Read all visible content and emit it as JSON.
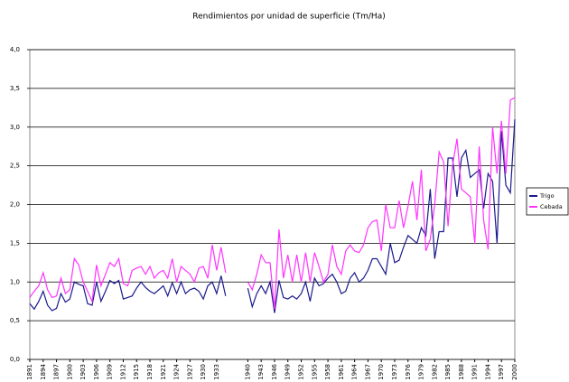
{
  "chart_data": {
    "type": "line",
    "title": "Rendimientos por unidad de superficie (Tm/Ha)",
    "x": [
      1891,
      1892,
      1893,
      1894,
      1895,
      1896,
      1897,
      1898,
      1899,
      1900,
      1901,
      1902,
      1903,
      1904,
      1905,
      1906,
      1907,
      1908,
      1909,
      1910,
      1911,
      1912,
      1913,
      1914,
      1915,
      1916,
      1917,
      1918,
      1919,
      1920,
      1921,
      1922,
      1923,
      1924,
      1925,
      1926,
      1927,
      1928,
      1929,
      1930,
      1931,
      1932,
      1933,
      1934,
      1935,
      1936,
      1937,
      1938,
      1939,
      1940,
      1941,
      1942,
      1943,
      1944,
      1945,
      1946,
      1947,
      1948,
      1949,
      1950,
      1951,
      1952,
      1953,
      1954,
      1955,
      1956,
      1957,
      1958,
      1959,
      1960,
      1961,
      1962,
      1963,
      1964,
      1965,
      1966,
      1967,
      1968,
      1969,
      1970,
      1971,
      1972,
      1973,
      1974,
      1975,
      1976,
      1977,
      1978,
      1979,
      1980,
      1981,
      1982,
      1983,
      1984,
      1985,
      1986,
      1987,
      1988,
      1989,
      1990,
      1991,
      1992,
      1993,
      1994,
      1995,
      1996,
      1997,
      1998,
      1999,
      2000
    ],
    "series": [
      {
        "name": "Trigo",
        "color": "#1a1a8c",
        "values": [
          0.72,
          0.65,
          0.75,
          0.88,
          0.7,
          0.63,
          0.66,
          0.85,
          0.74,
          0.78,
          1.0,
          0.97,
          0.95,
          0.72,
          0.7,
          1.0,
          0.75,
          0.88,
          1.02,
          0.98,
          1.02,
          0.78,
          0.8,
          0.82,
          0.92,
          1.0,
          0.93,
          0.88,
          0.85,
          0.9,
          0.95,
          0.82,
          0.99,
          0.85,
          1.0,
          0.85,
          0.9,
          0.92,
          0.88,
          0.78,
          0.95,
          1.0,
          0.85,
          1.08,
          0.82,
          null,
          null,
          null,
          null,
          0.92,
          0.68,
          0.85,
          0.95,
          0.85,
          1.0,
          0.6,
          1.02,
          0.8,
          0.78,
          0.82,
          0.78,
          0.85,
          1.0,
          0.75,
          1.05,
          0.95,
          0.98,
          1.05,
          1.1,
          1.0,
          0.85,
          0.88,
          1.05,
          1.12,
          1.0,
          1.05,
          1.15,
          1.3,
          1.3,
          1.2,
          1.1,
          1.5,
          1.25,
          1.28,
          1.45,
          1.6,
          1.55,
          1.5,
          1.7,
          1.6,
          2.2,
          1.3,
          1.65,
          1.65,
          2.6,
          2.6,
          2.1,
          2.6,
          2.7,
          2.35,
          2.4,
          2.45,
          1.95,
          2.4,
          2.3,
          1.5,
          2.95,
          2.25,
          2.15,
          3.1
        ]
      },
      {
        "name": "Cebada",
        "color": "#ff33ff",
        "values": [
          0.8,
          0.88,
          0.95,
          1.12,
          0.9,
          0.8,
          0.82,
          1.05,
          0.85,
          0.9,
          1.3,
          1.22,
          1.0,
          0.88,
          0.75,
          1.22,
          0.95,
          1.1,
          1.25,
          1.2,
          1.3,
          0.98,
          0.95,
          1.15,
          1.18,
          1.2,
          1.1,
          1.2,
          1.05,
          1.12,
          1.15,
          1.05,
          1.3,
          1.0,
          1.2,
          1.15,
          1.1,
          1.0,
          1.18,
          1.2,
          1.05,
          1.48,
          1.15,
          1.45,
          1.12,
          null,
          null,
          null,
          null,
          1.0,
          0.9,
          1.1,
          1.35,
          1.25,
          1.25,
          0.65,
          1.68,
          1.05,
          1.35,
          1.0,
          1.35,
          1.0,
          1.38,
          1.0,
          1.38,
          1.2,
          1.0,
          1.1,
          1.48,
          1.2,
          1.1,
          1.4,
          1.48,
          1.4,
          1.38,
          1.48,
          1.7,
          1.78,
          1.8,
          1.4,
          2.0,
          1.7,
          1.7,
          2.05,
          1.7,
          1.98,
          2.3,
          1.8,
          2.45,
          1.4,
          1.55,
          2.0,
          2.68,
          2.55,
          1.72,
          2.5,
          2.85,
          2.2,
          2.15,
          2.1,
          1.5,
          2.75,
          1.8,
          1.42,
          3.0,
          2.4,
          3.08,
          2.4,
          3.35,
          3.38
        ]
      }
    ],
    "xlim": [
      1891,
      2000
    ],
    "xticks": [
      1891,
      1894,
      1897,
      1900,
      1903,
      1906,
      1909,
      1912,
      1915,
      1918,
      1921,
      1924,
      1927,
      1930,
      1933,
      1940,
      1943,
      1946,
      1949,
      1952,
      1955,
      1958,
      1961,
      1964,
      1967,
      1970,
      1973,
      1976,
      1979,
      1982,
      1985,
      1988,
      1991,
      1994,
      1997,
      2000
    ],
    "ylim": [
      0,
      4
    ],
    "yticks": [
      {
        "value": 0,
        "label": "0,0"
      },
      {
        "value": 0.5,
        "label": "0,5"
      },
      {
        "value": 1,
        "label": "1,0"
      },
      {
        "value": 1.5,
        "label": "1,5"
      },
      {
        "value": 2,
        "label": "2,0"
      },
      {
        "value": 2.5,
        "label": "2,5"
      },
      {
        "value": 3,
        "label": "3,0"
      },
      {
        "value": 3.5,
        "label": "3,5"
      },
      {
        "value": 4,
        "label": "4,0"
      }
    ],
    "grid": true,
    "legend": "right"
  }
}
